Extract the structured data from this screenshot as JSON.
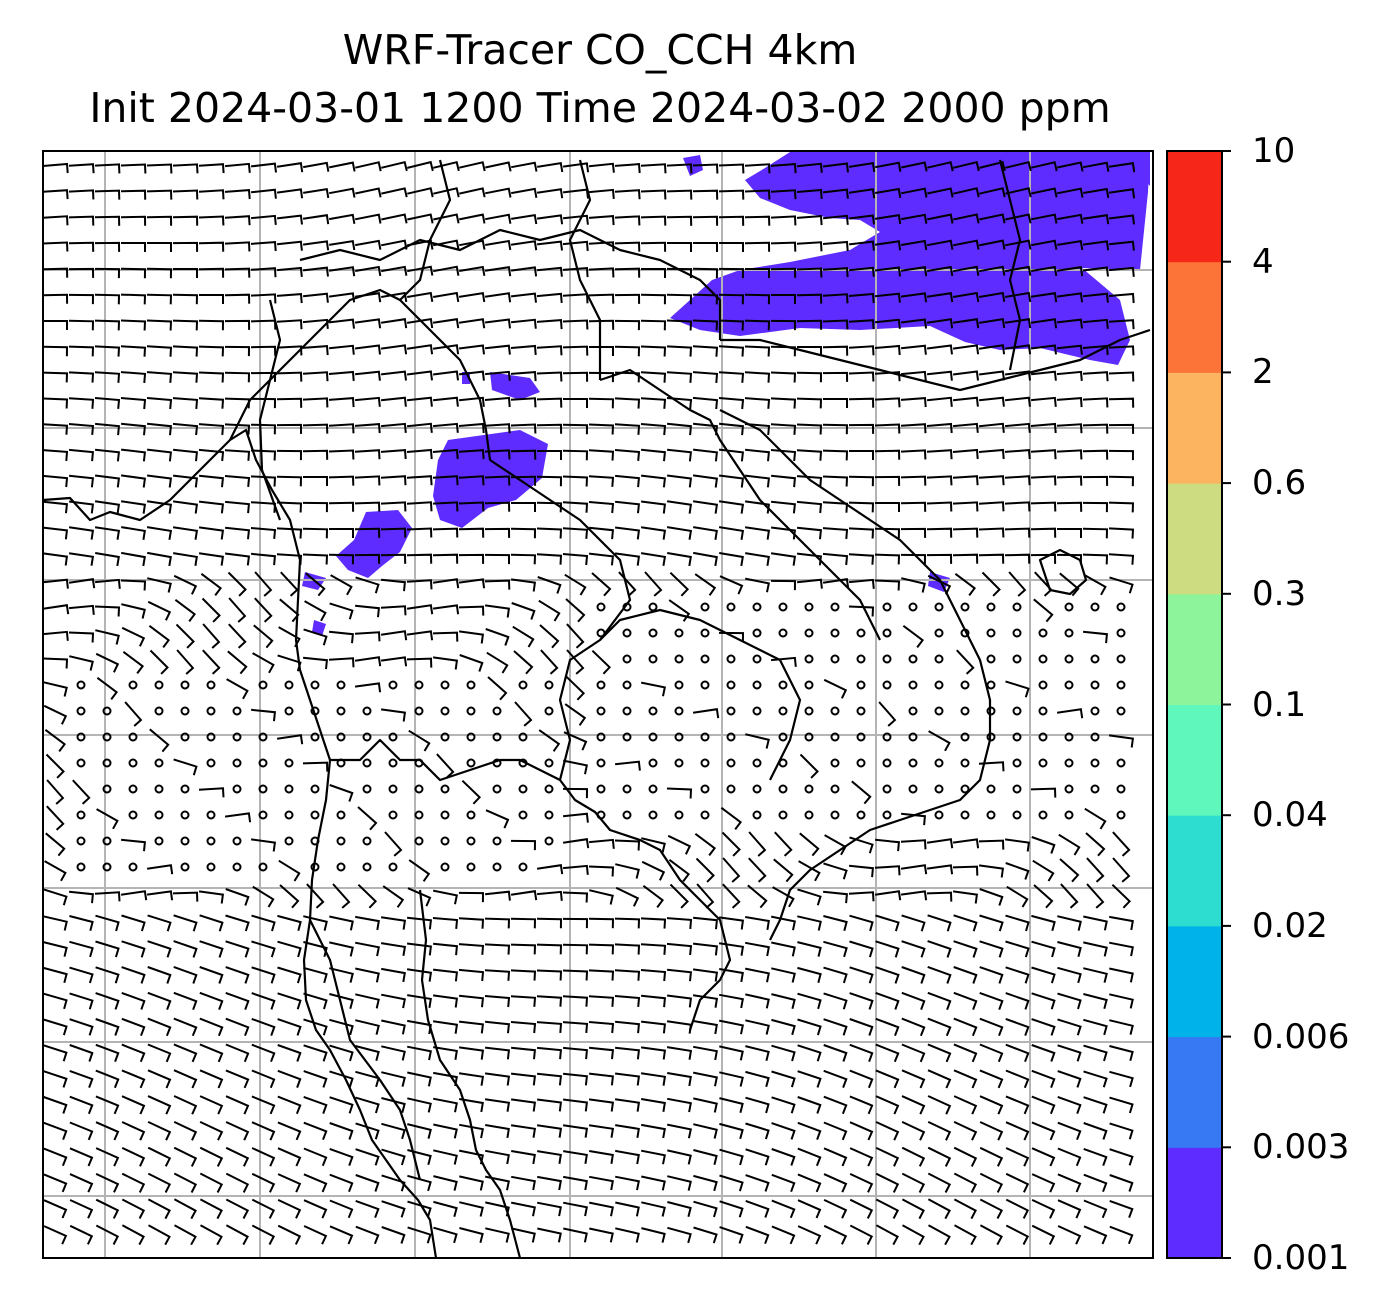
{
  "title": {
    "line1": "WRF-Tracer CO_CCH 4km",
    "line2": "Init 2024-03-01 1200 Time 2024-03-02 2000 ppm"
  },
  "colorbar": {
    "levels": [
      "0.001",
      "0.003",
      "0.006",
      "0.02",
      "0.04",
      "0.1",
      "0.3",
      "0.6",
      "2",
      "4",
      "10"
    ],
    "colors": [
      "#5e2cff",
      "#3679f2",
      "#00b2ea",
      "#2dddd0",
      "#5ff7bb",
      "#8ef49c",
      "#cddc80",
      "#fcb460",
      "#fc7438",
      "#f62718"
    ]
  },
  "map": {
    "tracer_color": "#5e2cff",
    "grid_color": "#b4b4b4",
    "coast_color": "#000000",
    "barb_color": "#000000"
  }
}
